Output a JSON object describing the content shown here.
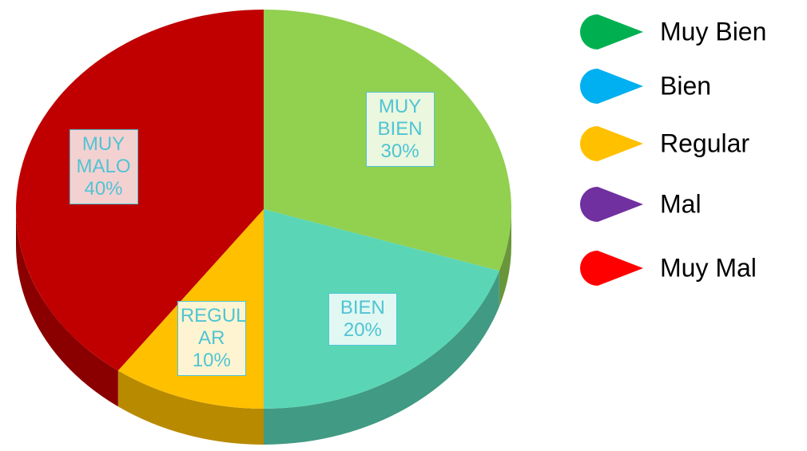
{
  "chart_data": {
    "type": "pie3d",
    "categories": [
      "Muy Bien",
      "Bien",
      "Regular",
      "Mal",
      "Muy Mal"
    ],
    "values": [
      30,
      20,
      10,
      0,
      40
    ],
    "value_labels": [
      "MUY BIEN 30%",
      "BIEN 20%",
      "REGUL AR 10%",
      null,
      "MUY MALO 40%"
    ],
    "colors": [
      "#92d050",
      "#5ad6b6",
      "#ffc000",
      "#7030a0",
      "#c00000"
    ],
    "legend_colors": [
      "#00b050",
      "#00b0f0",
      "#ffc000",
      "#7030a0",
      "#ff0000"
    ],
    "label_color": "#4fc4d4",
    "legend": "right"
  }
}
